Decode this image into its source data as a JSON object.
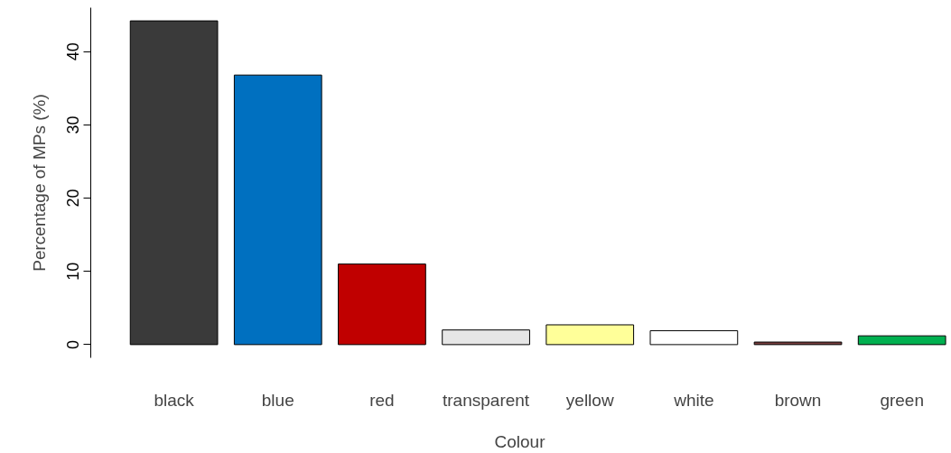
{
  "chart_data": {
    "type": "bar",
    "xlabel": "Colour",
    "ylabel": "Percentage of MPs (%)",
    "categories": [
      "black",
      "blue",
      "red",
      "transparent",
      "yellow",
      "white",
      "brown",
      "green"
    ],
    "values": [
      44.2,
      36.8,
      11.0,
      2.0,
      2.7,
      1.9,
      0.35,
      1.2
    ],
    "colors": [
      "#3a3a3a",
      "#0070c0",
      "#c00000",
      "#e6e6e6",
      "#ffff99",
      "#ffffff",
      "#7b3f3f",
      "#00b050"
    ],
    "ylim": [
      -1.8,
      46
    ],
    "yticks": [
      0,
      10,
      20,
      30,
      40
    ],
    "grid": false
  }
}
